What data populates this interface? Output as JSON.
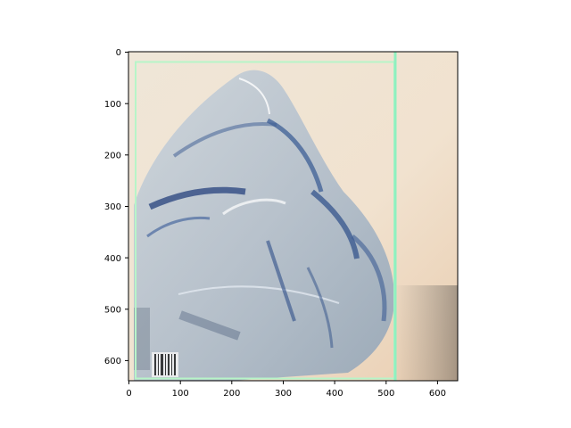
{
  "figure": {
    "image_description_icon": "crushed-plastic-water-bottle-photo",
    "frame_color": "#000000",
    "bbox_color": "#b7f5c8",
    "bbox_edge_color": "#8ff0c0"
  },
  "chart_data": {
    "type": "image",
    "title": "",
    "xlabel": "",
    "ylabel": "",
    "xlim": [
      0,
      640
    ],
    "ylim": [
      640,
      0
    ],
    "x_ticks": [
      0,
      100,
      200,
      300,
      400,
      500,
      600
    ],
    "y_ticks": [
      0,
      100,
      200,
      300,
      400,
      500,
      600
    ],
    "x_tick_labels": [
      "0",
      "100",
      "200",
      "300",
      "400",
      "500",
      "600"
    ],
    "y_tick_labels": [
      "0",
      "100",
      "200",
      "300",
      "400",
      "500",
      "600"
    ],
    "annotations": [
      {
        "kind": "bounding_box",
        "x_range": [
          14,
          520
        ],
        "y_range": [
          20,
          634
        ],
        "color": "#b7f5c8"
      }
    ]
  }
}
